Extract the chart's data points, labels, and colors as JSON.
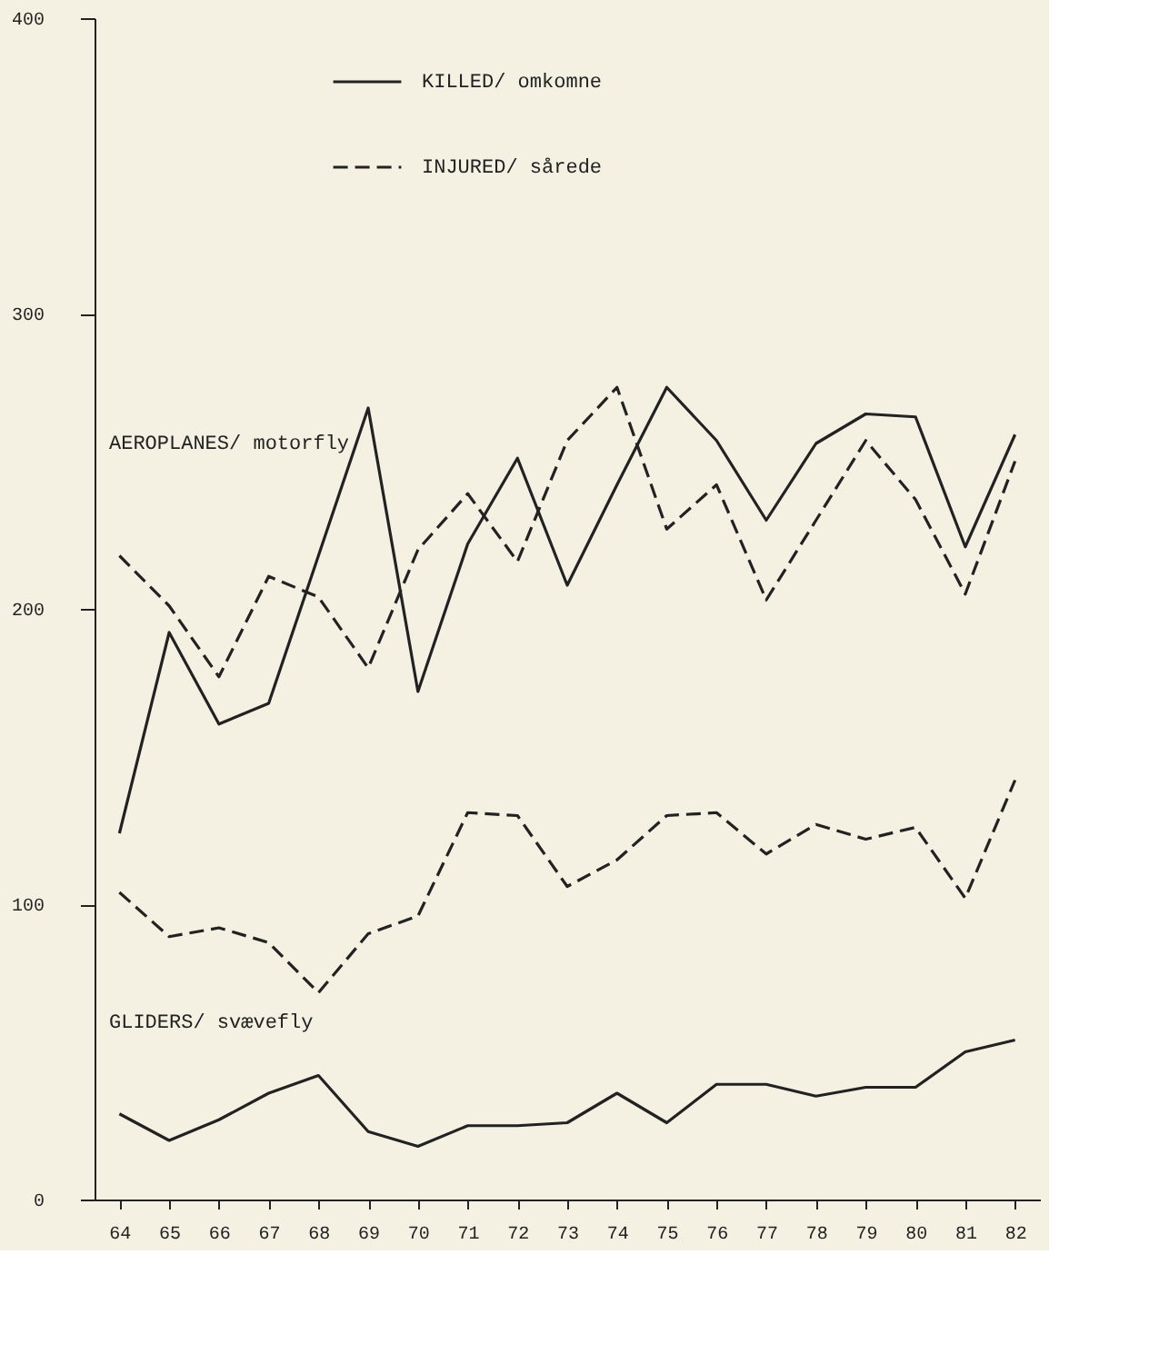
{
  "chart_data": {
    "type": "line",
    "categories": [
      "64",
      "65",
      "66",
      "67",
      "68",
      "69",
      "70",
      "71",
      "72",
      "73",
      "74",
      "75",
      "76",
      "77",
      "78",
      "79",
      "80",
      "81",
      "82"
    ],
    "series": [
      {
        "name": "KILLED/ omkomne",
        "color": "#222222",
        "line_style": "solid",
        "values": [
          124,
          192,
          161,
          168,
          218,
          268,
          172,
          222,
          251,
          208,
          242,
          275,
          257,
          230,
          256,
          266,
          265,
          221,
          259
        ]
      },
      {
        "name": "INJURED/ sårede",
        "color": "#222222",
        "line_style": "dashed",
        "values": [
          218,
          201,
          177,
          211,
          204,
          180,
          220,
          239,
          216,
          257,
          275,
          227,
          242,
          203,
          230,
          257,
          237,
          205,
          250
        ]
      },
      {
        "color": "#222222",
        "line_style": "solid",
        "values": [
          29,
          20,
          27,
          36,
          42,
          23,
          18,
          25,
          25,
          26,
          36,
          26,
          39,
          39,
          35,
          38,
          38,
          50,
          54
        ]
      },
      {
        "color": "#222222",
        "line_style": "dashed",
        "values": [
          104,
          89,
          92,
          87,
          70,
          90,
          96,
          131,
          130,
          106,
          115,
          130,
          131,
          117,
          127,
          122,
          126,
          102,
          142
        ]
      }
    ],
    "ylim": [
      0,
      400
    ],
    "yticks": [
      0,
      100,
      200,
      300,
      400
    ],
    "grid": false,
    "legend": "top",
    "annotations": [
      "AEROPLANES/ motorfly",
      "GLIDERS/ svævefly"
    ]
  }
}
